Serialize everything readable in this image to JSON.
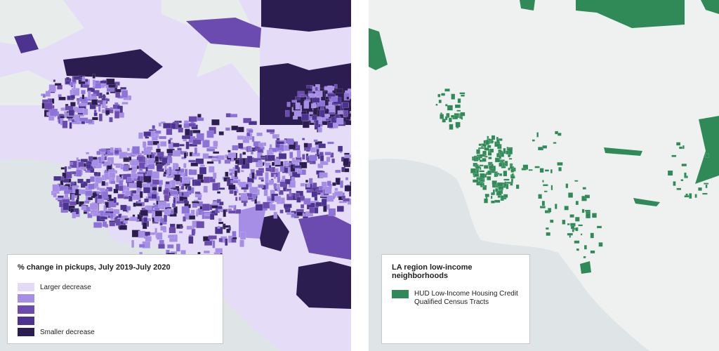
{
  "left_legend": {
    "title": "% change in pickups, July 2019-July 2020",
    "items": [
      {
        "color": "#e3daf7",
        "label": "Larger decrease"
      },
      {
        "color": "#a68ee6"
      },
      {
        "color": "#6b4bb0"
      },
      {
        "color": "#4d3390"
      },
      {
        "color": "#2b1d4f",
        "label": "Smaller decrease"
      }
    ]
  },
  "right_legend": {
    "title": "LA region low-income neighborhoods",
    "items": [
      {
        "color": "#2f8a57",
        "label": "HUD Low-Income Housing Credit Qualified Census Tracts"
      }
    ]
  }
}
